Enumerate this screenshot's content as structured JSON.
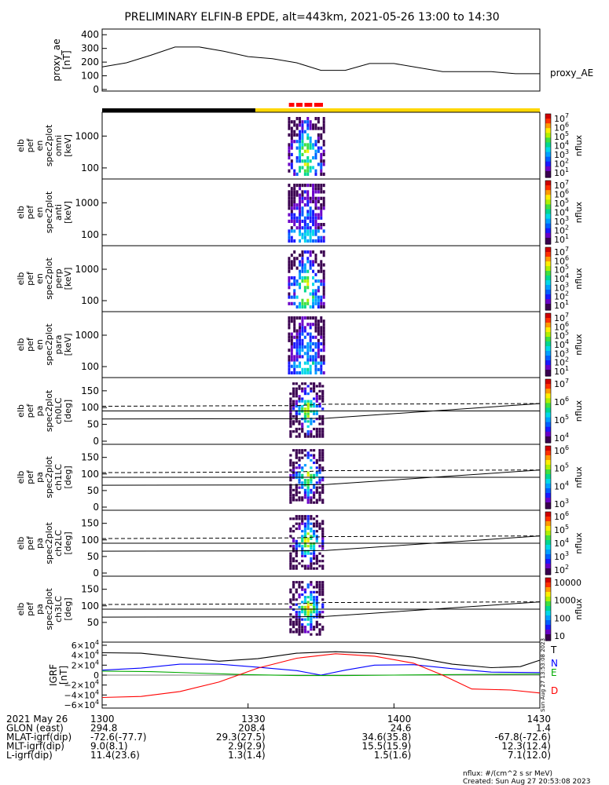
{
  "title": "PRELIMINARY ELFIN-B EPDE, alt=443km, 2021-05-26 13:00 to 14:30",
  "colors": {
    "trace": "#000000",
    "T": "#000000",
    "N": "#0000ff",
    "E": "#00aa00",
    "D": "#ff0000",
    "bar_black": "#000000",
    "bar_yellow": "#ffd700",
    "bar_red": "#ff0000"
  },
  "chart_data": [
    {
      "type": "line",
      "panel": "proxy_ae",
      "ylabel": "proxy_ae\n[nT]",
      "series_label": "proxy_AE",
      "ylim": [
        0,
        430
      ],
      "yticks": [
        "400",
        "300",
        "200",
        "100",
        "0"
      ],
      "series": [
        {
          "name": "proxy_AE",
          "x": [
            0,
            5,
            10,
            15,
            20,
            25,
            30,
            35,
            40,
            45,
            50,
            55,
            60,
            65,
            70,
            75,
            80,
            85,
            90
          ],
          "values": [
            165,
            195,
            250,
            310,
            310,
            280,
            240,
            225,
            195,
            140,
            140,
            190,
            190,
            160,
            130,
            130,
            130,
            115,
            115
          ]
        }
      ]
    },
    {
      "type": "heatmap",
      "panel": "en-omni",
      "ylabel": "elb\npef\nen\nspec2plot\nomni\n[keV]",
      "yticks": [
        "1000",
        "100"
      ],
      "colorbar_ticks": [
        "10^7",
        "10^6",
        "10^5",
        "10^4",
        "10^3",
        "10^2",
        "10^1"
      ],
      "colorbar_label": "nflux"
    },
    {
      "type": "heatmap",
      "panel": "en-anti",
      "ylabel": "elb\npef\nen\nspec2plot\nanti\n[keV]",
      "yticks": [
        "1000",
        "100"
      ],
      "colorbar_ticks": [
        "10^7",
        "10^6",
        "10^5",
        "10^4",
        "10^3",
        "10^2",
        "10^1"
      ],
      "colorbar_label": "nflux"
    },
    {
      "type": "heatmap",
      "panel": "en-perp",
      "ylabel": "elb\npef\nen\nspec2plot\nperp\n[keV]",
      "yticks": [
        "1000",
        "100"
      ],
      "colorbar_ticks": [
        "10^7",
        "10^6",
        "10^5",
        "10^4",
        "10^3",
        "10^2",
        "10^1"
      ],
      "colorbar_label": "nflux"
    },
    {
      "type": "heatmap",
      "panel": "en-para",
      "ylabel": "elb\npef\nen\nspec2plot\npara\n[keV]",
      "yticks": [
        "1000",
        "100"
      ],
      "colorbar_ticks": [
        "10^7",
        "10^6",
        "10^5",
        "10^4",
        "10^3",
        "10^2",
        "10^1"
      ],
      "colorbar_label": "nflux"
    },
    {
      "type": "heatmap",
      "panel": "pa-ch0LC",
      "ylabel": "elb\npef\npa\nspec2plot\nch0LC\n[deg]",
      "yticks": [
        "150",
        "100",
        "50",
        "0"
      ],
      "colorbar_ticks": [
        "10^7",
        "10^6",
        "10^5",
        "10^4"
      ],
      "colorbar_label": "nflux"
    },
    {
      "type": "heatmap",
      "panel": "pa-ch1LC",
      "ylabel": "elb\npef\npa\nspec2plot\nch1LC\n[deg]",
      "yticks": [
        "150",
        "100",
        "50",
        "0"
      ],
      "colorbar_ticks": [
        "10^6",
        "10^5",
        "10^4",
        "10^3"
      ],
      "colorbar_label": "nflux"
    },
    {
      "type": "heatmap",
      "panel": "pa-ch2LC",
      "ylabel": "elb\npef\npa\nspec2plot\nch2LC\n[deg]",
      "yticks": [
        "150",
        "100",
        "50",
        "0"
      ],
      "colorbar_ticks": [
        "10^6",
        "10^5",
        "10^4",
        "10^3",
        "10^2"
      ],
      "colorbar_label": "nflux"
    },
    {
      "type": "heatmap",
      "panel": "pa-ch3LC",
      "ylabel": "elb\npef\npa\nspec2plot\nch3LC\n[deg]",
      "yticks": [
        "150",
        "100",
        "50"
      ],
      "colorbar_ticks": [
        "10000",
        "1000",
        "100",
        "10"
      ],
      "colorbar_label": "nflux"
    },
    {
      "type": "line",
      "panel": "igrf",
      "ylabel": "IGRF\n[nT]",
      "ylim": [
        -60000,
        60000
      ],
      "yticks": [
        "6×10^4",
        "4×10^4",
        "2×10^4",
        "0",
        "−2×10^4",
        "−4×10^4",
        "−6×10^4"
      ],
      "series": [
        {
          "name": "T",
          "x": [
            0,
            8,
            16,
            24,
            32,
            40,
            48,
            56,
            64,
            72,
            80,
            86,
            90
          ],
          "values": [
            45000,
            44000,
            36000,
            28000,
            33000,
            44000,
            47000,
            44000,
            36000,
            22000,
            15000,
            17000,
            30000
          ]
        },
        {
          "name": "N",
          "x": [
            0,
            8,
            16,
            24,
            32,
            40,
            45,
            50,
            56,
            64,
            72,
            80,
            90
          ],
          "values": [
            10000,
            14000,
            22000,
            22000,
            16000,
            9000,
            0,
            10000,
            20000,
            21000,
            13000,
            6000,
            5000
          ]
        },
        {
          "name": "E",
          "x": [
            0,
            10,
            20,
            30,
            40,
            50,
            60,
            70,
            80,
            90
          ],
          "values": [
            8000,
            7000,
            4000,
            1000,
            -1000,
            -1000,
            0,
            1000,
            1500,
            2000
          ]
        },
        {
          "name": "D",
          "x": [
            0,
            8,
            16,
            24,
            32,
            40,
            48,
            56,
            64,
            70,
            76,
            84,
            90
          ],
          "values": [
            -45000,
            -43000,
            -33000,
            -14000,
            14000,
            34000,
            43000,
            38000,
            24000,
            0,
            -28000,
            -30000,
            -36000
          ]
        }
      ],
      "legend": [
        "T",
        "N",
        "E",
        "D"
      ]
    }
  ],
  "xaxis": {
    "labels": [
      {
        "row": "2021 May 26",
        "values": [
          "1300",
          "1330",
          "1400",
          "1430"
        ]
      },
      {
        "row": "GLON (east)",
        "values": [
          "294.8",
          "208.4",
          "24.6",
          "1.4"
        ]
      },
      {
        "row": "MLAT-igrf(dip)",
        "values": [
          "-72.6(-77.7)",
          "29.3(27.5)",
          "34.6(35.8)",
          "-67.8(-72.6)"
        ]
      },
      {
        "row": "MLT-igrf(dip)",
        "values": [
          "9.0(8.1)",
          "2.9(2.9)",
          "15.5(15.9)",
          "12.3(12.4)"
        ]
      },
      {
        "row": "L-igrf(dip)",
        "values": [
          "11.4(23.6)",
          "1.3(1.4)",
          "1.5(1.6)",
          "7.1(12.0)"
        ]
      }
    ]
  },
  "footer": {
    "units": "nflux: #/(cm^2 s sr MeV)",
    "created": "Created: Sun Aug 27 20:53:08 2023",
    "side_stamp": "Sun Aug 27 13:53:08 2023"
  }
}
